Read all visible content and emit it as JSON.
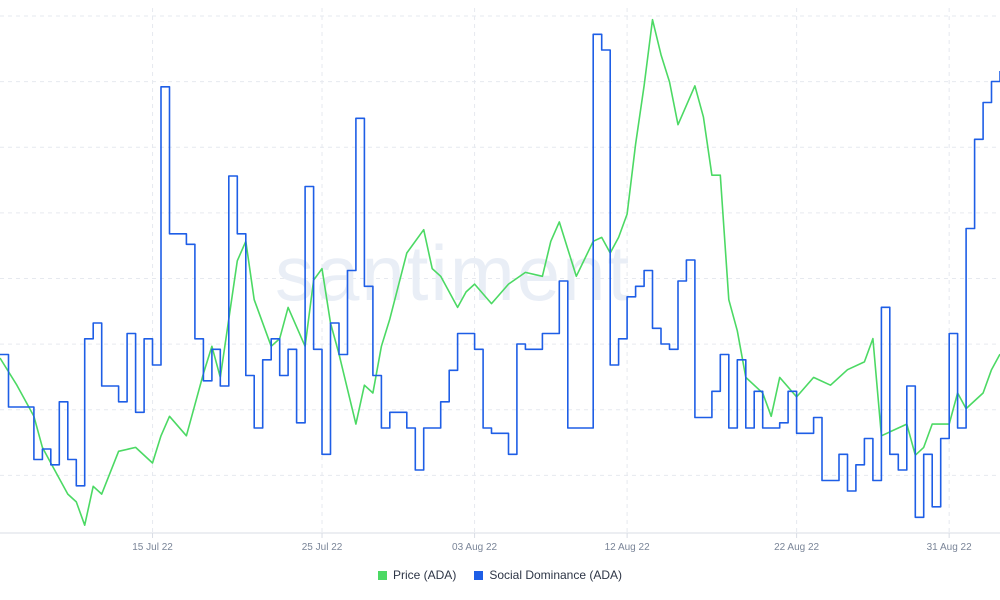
{
  "watermark": "santiment",
  "colors": {
    "price": "#4cd964",
    "social": "#1e5ee6",
    "grid": "#e6e9ef",
    "axis": "#d9dde5",
    "tick": "#7a8598"
  },
  "legend": [
    {
      "label": "Price (ADA)",
      "color": "#4cd964"
    },
    {
      "label": "Social Dominance (ADA)",
      "color": "#1e5ee6"
    }
  ],
  "chart_data": {
    "type": "line",
    "x_start": "2022-07-06",
    "x_end": "2022-09-03",
    "x_ticks": [
      {
        "date": "2022-07-15",
        "label": "15 Jul 22"
      },
      {
        "date": "2022-07-25",
        "label": "25 Jul 22"
      },
      {
        "date": "2022-08-03",
        "label": "03 Aug 22"
      },
      {
        "date": "2022-08-12",
        "label": "12 Aug 22"
      },
      {
        "date": "2022-08-22",
        "label": "22 Aug 22"
      },
      {
        "date": "2022-08-31",
        "label": "31 Aug 22"
      }
    ],
    "grid": true,
    "legend_position": "bottom",
    "series": [
      {
        "name": "Price (ADA)",
        "ylim": [
          0.43,
          0.565
        ],
        "points": [
          [
            "2022-07-06",
            0.475
          ],
          [
            "2022-07-07",
            0.468
          ],
          [
            "2022-07-08",
            0.46
          ],
          [
            "2022-07-08T12:00",
            0.452
          ],
          [
            "2022-07-09",
            0.448
          ],
          [
            "2022-07-10",
            0.44
          ],
          [
            "2022-07-10T12:00",
            0.438
          ],
          [
            "2022-07-11",
            0.432
          ],
          [
            "2022-07-11T12:00",
            0.442
          ],
          [
            "2022-07-12",
            0.44
          ],
          [
            "2022-07-13",
            0.451
          ],
          [
            "2022-07-14",
            0.452
          ],
          [
            "2022-07-15",
            0.448
          ],
          [
            "2022-07-15T12:00",
            0.455
          ],
          [
            "2022-07-16",
            0.46
          ],
          [
            "2022-07-17",
            0.455
          ],
          [
            "2022-07-18",
            0.471
          ],
          [
            "2022-07-18T12:00",
            0.478
          ],
          [
            "2022-07-19",
            0.47
          ],
          [
            "2022-07-20",
            0.5
          ],
          [
            "2022-07-20T12:00",
            0.505
          ],
          [
            "2022-07-21",
            0.49
          ],
          [
            "2022-07-22",
            0.478
          ],
          [
            "2022-07-22T12:00",
            0.48
          ],
          [
            "2022-07-23",
            0.488
          ],
          [
            "2022-07-24",
            0.478
          ],
          [
            "2022-07-24T12:00",
            0.495
          ],
          [
            "2022-07-25",
            0.498
          ],
          [
            "2022-07-25T12:00",
            0.484
          ],
          [
            "2022-07-26",
            0.476
          ],
          [
            "2022-07-27",
            0.458
          ],
          [
            "2022-07-27T12:00",
            0.468
          ],
          [
            "2022-07-28",
            0.466
          ],
          [
            "2022-07-28T12:00",
            0.478
          ],
          [
            "2022-07-29",
            0.485
          ],
          [
            "2022-07-30",
            0.502
          ],
          [
            "2022-07-31",
            0.508
          ],
          [
            "2022-07-31T12:00",
            0.498
          ],
          [
            "2022-08-01",
            0.496
          ],
          [
            "2022-08-02",
            0.488
          ],
          [
            "2022-08-02T12:00",
            0.492
          ],
          [
            "2022-08-03",
            0.494
          ],
          [
            "2022-08-04",
            0.489
          ],
          [
            "2022-08-05",
            0.494
          ],
          [
            "2022-08-06",
            0.497
          ],
          [
            "2022-08-07",
            0.496
          ],
          [
            "2022-08-07T12:00",
            0.505
          ],
          [
            "2022-08-08",
            0.51
          ],
          [
            "2022-08-08T12:00",
            0.503
          ],
          [
            "2022-08-09",
            0.496
          ],
          [
            "2022-08-10",
            0.505
          ],
          [
            "2022-08-10T12:00",
            0.506
          ],
          [
            "2022-08-11",
            0.502
          ],
          [
            "2022-08-11T12:00",
            0.506
          ],
          [
            "2022-08-12",
            0.512
          ],
          [
            "2022-08-12T12:00",
            0.53
          ],
          [
            "2022-08-13",
            0.545
          ],
          [
            "2022-08-13T12:00",
            0.562
          ],
          [
            "2022-08-14",
            0.553
          ],
          [
            "2022-08-14T12:00",
            0.546
          ],
          [
            "2022-08-15",
            0.535
          ],
          [
            "2022-08-16",
            0.545
          ],
          [
            "2022-08-16T12:00",
            0.537
          ],
          [
            "2022-08-17",
            0.522
          ],
          [
            "2022-08-17T12:00",
            0.522
          ],
          [
            "2022-08-18",
            0.49
          ],
          [
            "2022-08-18T12:00",
            0.482
          ],
          [
            "2022-08-19",
            0.47
          ],
          [
            "2022-08-20",
            0.466
          ],
          [
            "2022-08-20T12:00",
            0.46
          ],
          [
            "2022-08-21",
            0.47
          ],
          [
            "2022-08-22",
            0.465
          ],
          [
            "2022-08-23",
            0.47
          ],
          [
            "2022-08-24",
            0.468
          ],
          [
            "2022-08-25",
            0.472
          ],
          [
            "2022-08-26",
            0.474
          ],
          [
            "2022-08-26T12:00",
            0.48
          ],
          [
            "2022-08-27",
            0.455
          ],
          [
            "2022-08-28",
            0.457
          ],
          [
            "2022-08-28T12:00",
            0.458
          ],
          [
            "2022-08-29",
            0.45
          ],
          [
            "2022-08-29T12:00",
            0.452
          ],
          [
            "2022-08-30",
            0.458
          ],
          [
            "2022-08-31",
            0.458
          ],
          [
            "2022-08-31T12:00",
            0.466
          ],
          [
            "2022-09-01",
            0.462
          ],
          [
            "2022-09-02",
            0.466
          ],
          [
            "2022-09-02T12:00",
            0.472
          ],
          [
            "2022-09-03",
            0.476
          ]
        ]
      },
      {
        "name": "Social Dominance (ADA)",
        "ylim": [
          0,
          1
        ],
        "points": [
          [
            "2022-07-06",
            0.34
          ],
          [
            "2022-07-06T12:00",
            0.24
          ],
          [
            "2022-07-08",
            0.14
          ],
          [
            "2022-07-08T12:00",
            0.16
          ],
          [
            "2022-07-09",
            0.13
          ],
          [
            "2022-07-09T12:00",
            0.25
          ],
          [
            "2022-07-10",
            0.14
          ],
          [
            "2022-07-10T12:00",
            0.09
          ],
          [
            "2022-07-11",
            0.37
          ],
          [
            "2022-07-11T12:00",
            0.4
          ],
          [
            "2022-07-12",
            0.28
          ],
          [
            "2022-07-13",
            0.25
          ],
          [
            "2022-07-13T12:00",
            0.38
          ],
          [
            "2022-07-14",
            0.23
          ],
          [
            "2022-07-14T12:00",
            0.37
          ],
          [
            "2022-07-15",
            0.32
          ],
          [
            "2022-07-15T12:00",
            0.85
          ],
          [
            "2022-07-16",
            0.57
          ],
          [
            "2022-07-17",
            0.55
          ],
          [
            "2022-07-17T12:00",
            0.37
          ],
          [
            "2022-07-18",
            0.29
          ],
          [
            "2022-07-18T12:00",
            0.35
          ],
          [
            "2022-07-19",
            0.28
          ],
          [
            "2022-07-19T12:00",
            0.68
          ],
          [
            "2022-07-20",
            0.57
          ],
          [
            "2022-07-20T12:00",
            0.3
          ],
          [
            "2022-07-21",
            0.2
          ],
          [
            "2022-07-21T12:00",
            0.33
          ],
          [
            "2022-07-22",
            0.37
          ],
          [
            "2022-07-22T12:00",
            0.3
          ],
          [
            "2022-07-23",
            0.35
          ],
          [
            "2022-07-23T12:00",
            0.21
          ],
          [
            "2022-07-24",
            0.66
          ],
          [
            "2022-07-24T12:00",
            0.35
          ],
          [
            "2022-07-25",
            0.15
          ],
          [
            "2022-07-25T12:00",
            0.4
          ],
          [
            "2022-07-26",
            0.34
          ],
          [
            "2022-07-26T12:00",
            0.5
          ],
          [
            "2022-07-27",
            0.79
          ],
          [
            "2022-07-27T12:00",
            0.47
          ],
          [
            "2022-07-28",
            0.3
          ],
          [
            "2022-07-28T12:00",
            0.2
          ],
          [
            "2022-07-29",
            0.23
          ],
          [
            "2022-07-30",
            0.2
          ],
          [
            "2022-07-30T12:00",
            0.12
          ],
          [
            "2022-07-31",
            0.2
          ],
          [
            "2022-08-01",
            0.25
          ],
          [
            "2022-08-01T12:00",
            0.31
          ],
          [
            "2022-08-02",
            0.38
          ],
          [
            "2022-08-03",
            0.35
          ],
          [
            "2022-08-03T12:00",
            0.2
          ],
          [
            "2022-08-04",
            0.19
          ],
          [
            "2022-08-05",
            0.15
          ],
          [
            "2022-08-05T12:00",
            0.36
          ],
          [
            "2022-08-06",
            0.35
          ],
          [
            "2022-08-07",
            0.38
          ],
          [
            "2022-08-08",
            0.48
          ],
          [
            "2022-08-08T12:00",
            0.2
          ],
          [
            "2022-08-09",
            0.2
          ],
          [
            "2022-08-10",
            0.95
          ],
          [
            "2022-08-10T12:00",
            0.92
          ],
          [
            "2022-08-11",
            0.32
          ],
          [
            "2022-08-11T12:00",
            0.37
          ],
          [
            "2022-08-12",
            0.45
          ],
          [
            "2022-08-12T12:00",
            0.47
          ],
          [
            "2022-08-13",
            0.5
          ],
          [
            "2022-08-13T12:00",
            0.39
          ],
          [
            "2022-08-14",
            0.36
          ],
          [
            "2022-08-14T12:00",
            0.35
          ],
          [
            "2022-08-15",
            0.48
          ],
          [
            "2022-08-15T12:00",
            0.52
          ],
          [
            "2022-08-16",
            0.22
          ],
          [
            "2022-08-17",
            0.27
          ],
          [
            "2022-08-17T12:00",
            0.34
          ],
          [
            "2022-08-18",
            0.2
          ],
          [
            "2022-08-18T12:00",
            0.33
          ],
          [
            "2022-08-19",
            0.2
          ],
          [
            "2022-08-19T12:00",
            0.27
          ],
          [
            "2022-08-20",
            0.2
          ],
          [
            "2022-08-21",
            0.21
          ],
          [
            "2022-08-21T12:00",
            0.27
          ],
          [
            "2022-08-22",
            0.19
          ],
          [
            "2022-08-23",
            0.22
          ],
          [
            "2022-08-23T12:00",
            0.1
          ],
          [
            "2022-08-24",
            0.1
          ],
          [
            "2022-08-24T12:00",
            0.15
          ],
          [
            "2022-08-25",
            0.08
          ],
          [
            "2022-08-25T12:00",
            0.13
          ],
          [
            "2022-08-26",
            0.18
          ],
          [
            "2022-08-26T12:00",
            0.1
          ],
          [
            "2022-08-27",
            0.43
          ],
          [
            "2022-08-27T12:00",
            0.15
          ],
          [
            "2022-08-28",
            0.12
          ],
          [
            "2022-08-28T12:00",
            0.28
          ],
          [
            "2022-08-29",
            0.03
          ],
          [
            "2022-08-29T12:00",
            0.15
          ],
          [
            "2022-08-30",
            0.05
          ],
          [
            "2022-08-30T12:00",
            0.18
          ],
          [
            "2022-08-31",
            0.38
          ],
          [
            "2022-08-31T12:00",
            0.2
          ],
          [
            "2022-09-01",
            0.58
          ],
          [
            "2022-09-01T12:00",
            0.75
          ],
          [
            "2022-09-02",
            0.82
          ],
          [
            "2022-09-02T12:00",
            0.86
          ],
          [
            "2022-09-03",
            0.88
          ]
        ]
      }
    ]
  }
}
